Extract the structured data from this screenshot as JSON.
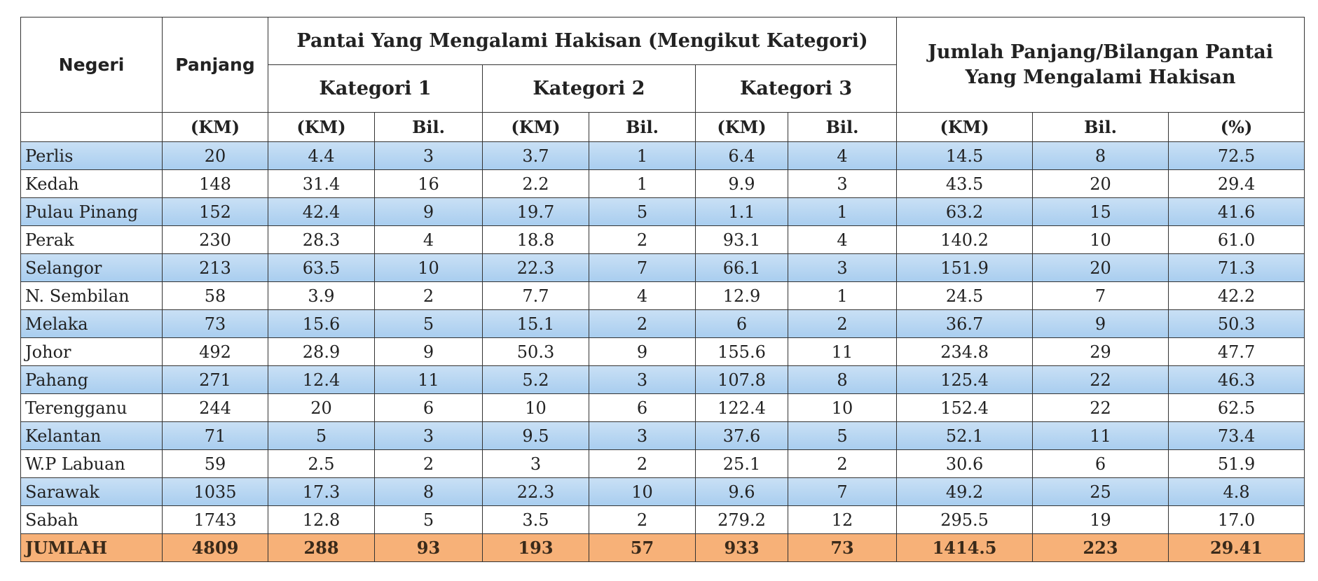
{
  "header": {
    "negeri": "Negeri",
    "panjang": "Panjang",
    "group": "Pantai Yang Mengalami Hakisan (Mengikut Kategori)",
    "categories": [
      "Kategori 1",
      "Kategori 2",
      "Kategori 3"
    ],
    "total": "Jumlah Panjang/Bilangan Pantai Yang Mengalami Hakisan",
    "units": [
      "(KM)",
      "(KM)",
      "Bil.",
      "(KM)",
      "Bil.",
      "(KM)",
      "Bil.",
      "(KM)",
      "Bil.",
      "(%)"
    ]
  },
  "table": {
    "rows": [
      [
        "Perlis",
        "20",
        "4.4",
        "3",
        "3.7",
        "1",
        "6.4",
        "4",
        "14.5",
        "8",
        "72.5"
      ],
      [
        "Kedah",
        "148",
        "31.4",
        "16",
        "2.2",
        "1",
        "9.9",
        "3",
        "43.5",
        "20",
        "29.4"
      ],
      [
        "Pulau Pinang",
        "152",
        "42.4",
        "9",
        "19.7",
        "5",
        "1.1",
        "1",
        "63.2",
        "15",
        "41.6"
      ],
      [
        "Perak",
        "230",
        "28.3",
        "4",
        "18.8",
        "2",
        "93.1",
        "4",
        "140.2",
        "10",
        "61.0"
      ],
      [
        "Selangor",
        "213",
        "63.5",
        "10",
        "22.3",
        "7",
        "66.1",
        "3",
        "151.9",
        "20",
        "71.3"
      ],
      [
        "N. Sembilan",
        "58",
        "3.9",
        "2",
        "7.7",
        "4",
        "12.9",
        "1",
        "24.5",
        "7",
        "42.2"
      ],
      [
        "Melaka",
        "73",
        "15.6",
        "5",
        "15.1",
        "2",
        "6",
        "2",
        "36.7",
        "9",
        "50.3"
      ],
      [
        "Johor",
        "492",
        "28.9",
        "9",
        "50.3",
        "9",
        "155.6",
        "11",
        "234.8",
        "29",
        "47.7"
      ],
      [
        "Pahang",
        "271",
        "12.4",
        "11",
        "5.2",
        "3",
        "107.8",
        "8",
        "125.4",
        "22",
        "46.3"
      ],
      [
        "Terengganu",
        "244",
        "20",
        "6",
        "10",
        "6",
        "122.4",
        "10",
        "152.4",
        "22",
        "62.5"
      ],
      [
        "Kelantan",
        "71",
        "5",
        "3",
        "9.5",
        "3",
        "37.6",
        "5",
        "52.1",
        "11",
        "73.4"
      ],
      [
        "W.P Labuan",
        "59",
        "2.5",
        "2",
        "3",
        "2",
        "25.1",
        "2",
        "30.6",
        "6",
        "51.9"
      ],
      [
        "Sarawak",
        "1035",
        "17.3",
        "8",
        "22.3",
        "10",
        "9.6",
        "7",
        "49.2",
        "25",
        "4.8"
      ],
      [
        "Sabah",
        "1743",
        "12.8",
        "5",
        "3.5",
        "2",
        "279.2",
        "12",
        "295.5",
        "19",
        "17.0"
      ]
    ],
    "total": [
      "JUMLAH",
      "4809",
      "288",
      "93",
      "193",
      "57",
      "933",
      "73",
      "1414.5",
      "223",
      "29.41"
    ]
  }
}
